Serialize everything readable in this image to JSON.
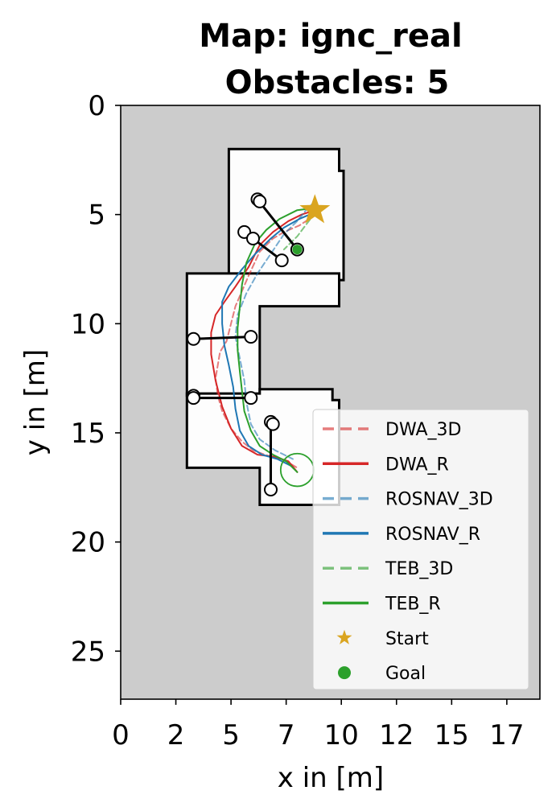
{
  "chart_data": {
    "type": "scatter",
    "title_lines": [
      "Map: ignc_real",
      "Obstacles: 5"
    ],
    "xlabel": "x in [m]",
    "ylabel": "y in [m]",
    "xlim": [
      0,
      19
    ],
    "ylim": [
      27.2,
      0
    ],
    "x_ticks": [
      0,
      2.5,
      5,
      7.5,
      10,
      12.5,
      15,
      17.5
    ],
    "x_tick_labels": [
      "0",
      "2",
      "5",
      "7",
      "10",
      "12",
      "15",
      "17"
    ],
    "y_ticks": [
      0,
      5,
      10,
      15,
      20,
      25
    ],
    "y_tick_labels": [
      "0",
      "5",
      "10",
      "15",
      "20",
      "25"
    ],
    "grid": false,
    "legend_position": "lower right",
    "colors": {
      "unknown": "#cccccc",
      "free": "#fdfdfd",
      "wall": "#000000",
      "DWA": "#d62728",
      "ROSNAV": "#1f77b4",
      "TEB": "#2ca02c",
      "start": "#daa520",
      "goal": "#2ca02c"
    },
    "map_regions": [
      [
        [
          4.9,
          2.0
        ],
        [
          9.9,
          2.0
        ],
        [
          9.9,
          3.0
        ],
        [
          10.1,
          3.0
        ],
        [
          10.1,
          8.0
        ],
        [
          4.9,
          8.0
        ]
      ],
      [
        [
          3.0,
          7.7
        ],
        [
          9.9,
          7.7
        ],
        [
          9.9,
          9.2
        ],
        [
          6.3,
          9.2
        ],
        [
          6.3,
          13.3
        ],
        [
          3.0,
          13.3
        ]
      ],
      [
        [
          3.0,
          13.2
        ],
        [
          6.3,
          13.2
        ],
        [
          6.3,
          13.0
        ],
        [
          9.6,
          13.0
        ],
        [
          9.6,
          13.5
        ],
        [
          9.9,
          13.5
        ],
        [
          9.9,
          18.3
        ],
        [
          6.3,
          18.3
        ],
        [
          6.3,
          16.6
        ],
        [
          3.0,
          16.6
        ]
      ]
    ],
    "obstacles": [
      {
        "path": [
          [
            6.2,
            4.3
          ],
          [
            8.0,
            6.6
          ]
        ],
        "circles": [
          [
            6.2,
            4.3
          ],
          [
            6.3,
            4.4
          ],
          [
            8.0,
            6.6
          ]
        ]
      },
      {
        "path": [
          [
            5.6,
            5.8
          ],
          [
            7.3,
            7.1
          ]
        ],
        "circles": [
          [
            5.6,
            5.8
          ],
          [
            6.0,
            6.1
          ],
          [
            7.3,
            7.1
          ]
        ]
      },
      {
        "path": [
          [
            3.3,
            10.7
          ],
          [
            5.9,
            10.6
          ]
        ],
        "circles": [
          [
            3.3,
            10.7
          ],
          [
            5.9,
            10.6
          ]
        ]
      },
      {
        "path": [
          [
            3.3,
            13.4
          ],
          [
            5.9,
            13.4
          ]
        ],
        "circles": [
          [
            3.3,
            13.3
          ],
          [
            3.3,
            13.4
          ],
          [
            5.9,
            13.4
          ]
        ]
      },
      {
        "path": [
          [
            6.8,
            14.5
          ],
          [
            6.8,
            17.6
          ]
        ],
        "circles": [
          [
            6.8,
            14.5
          ],
          [
            6.9,
            14.6
          ],
          [
            6.8,
            17.6
          ]
        ]
      }
    ],
    "series": [
      {
        "name": "DWA_3D",
        "style": "dashed",
        "x": [
          8.8,
          8.4,
          8.1,
          7.4,
          6.9,
          6.3,
          5.8,
          5.2,
          5.0,
          4.8,
          4.5,
          4.3,
          4.4,
          4.6,
          5.0,
          5.5,
          6.0,
          6.8,
          7.5,
          8.0
        ],
        "y": [
          5.0,
          5.3,
          5.5,
          5.8,
          6.1,
          6.7,
          7.8,
          9.2,
          10.0,
          10.8,
          11.3,
          12.5,
          13.3,
          14.0,
          14.8,
          15.4,
          15.8,
          16.1,
          16.3,
          16.6
        ]
      },
      {
        "name": "DWA_R",
        "style": "solid",
        "x": [
          8.8,
          8.2,
          7.6,
          6.9,
          6.3,
          5.8,
          5.2,
          4.7,
          4.3,
          4.1,
          4.1,
          4.3,
          4.6,
          5.0,
          5.5,
          6.2,
          7.0,
          7.6,
          8.0
        ],
        "y": [
          4.8,
          5.0,
          5.3,
          5.8,
          6.4,
          7.4,
          8.3,
          9.0,
          9.6,
          10.4,
          11.4,
          12.6,
          13.8,
          14.8,
          15.6,
          16.0,
          16.1,
          16.3,
          16.8
        ]
      },
      {
        "name": "ROSNAV_3D",
        "style": "dashed",
        "x": [
          8.8,
          8.4,
          8.0,
          7.4,
          6.8,
          6.2,
          5.7,
          5.3,
          5.2,
          5.4,
          5.6,
          5.7,
          5.9,
          6.3,
          7.0,
          7.8
        ],
        "y": [
          4.4,
          4.8,
          5.3,
          5.9,
          6.8,
          7.7,
          8.6,
          9.6,
          10.6,
          11.6,
          12.6,
          13.6,
          14.6,
          15.3,
          15.8,
          16.2
        ]
      },
      {
        "name": "ROSNAV_R",
        "style": "solid",
        "x": [
          8.8,
          8.1,
          7.4,
          6.8,
          6.1,
          5.5,
          4.9,
          4.6,
          4.6,
          4.7,
          4.9,
          5.1,
          5.2,
          5.4,
          5.8,
          6.4,
          7.1,
          7.7
        ],
        "y": [
          4.9,
          5.2,
          5.6,
          6.1,
          6.8,
          7.5,
          8.3,
          9.0,
          10.0,
          11.0,
          11.9,
          12.9,
          13.9,
          14.9,
          15.6,
          16.0,
          16.2,
          16.5
        ]
      },
      {
        "name": "TEB_3D",
        "style": "dashed",
        "x": [
          8.8,
          8.6,
          8.3,
          8.0,
          7.7,
          7.4
        ],
        "y": [
          4.9,
          5.2,
          5.6,
          6.0,
          6.3,
          6.6
        ]
      },
      {
        "name": "TEB_R",
        "style": "solid",
        "x": [
          8.8,
          8.0,
          7.2,
          6.6,
          6.1,
          5.7,
          5.5,
          5.4,
          5.3,
          5.3,
          5.4,
          5.5,
          5.6,
          5.9,
          6.3,
          6.9,
          7.5,
          8.0
        ],
        "y": [
          4.7,
          4.8,
          5.2,
          5.7,
          6.3,
          7.2,
          8.2,
          9.2,
          10.2,
          11.2,
          12.2,
          13.1,
          14.0,
          14.9,
          15.6,
          16.0,
          16.3,
          16.8
        ]
      }
    ],
    "start": {
      "name": "Start",
      "x": 8.8,
      "y": 4.8
    },
    "goal": {
      "name": "Goal",
      "x": 8.0,
      "y": 6.6
    },
    "goal_radius_circle": {
      "x": 8.0,
      "y": 16.7,
      "r": 0.75
    }
  }
}
